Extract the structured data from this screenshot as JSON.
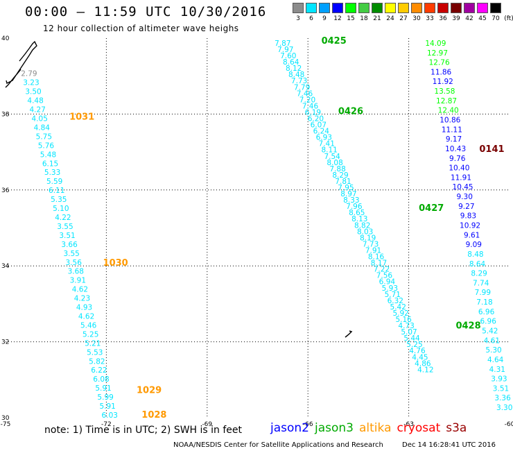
{
  "title": "00:00 – 11:59 UTC 10/30/2016",
  "subtitle": "12 hour collection of altimeter wave heighs",
  "color_scale": {
    "labels": [
      "3",
      "6",
      "9",
      "12",
      "15",
      "18",
      "21",
      "24",
      "27",
      "30",
      "33",
      "36",
      "39",
      "42",
      "45",
      "70",
      "(ft)"
    ],
    "colors": [
      "#8c8c8c",
      "#00e5ff",
      "#00a0ff",
      "#0000ff",
      "#00ff00",
      "#44cc44",
      "#008c00",
      "#ffff00",
      "#ffcc00",
      "#ff8c00",
      "#ff3c00",
      "#c80000",
      "#780000",
      "#a000a0",
      "#ff00ff",
      "#000000"
    ]
  },
  "note": "note: 1) Time is in UTC; 2) SWH is in feet",
  "satellites": [
    {
      "name": "jason2",
      "color": "#0000ff"
    },
    {
      "name": "jason3",
      "color": "#00aa00"
    },
    {
      "name": "altika",
      "color": "#ff9900"
    },
    {
      "name": "cryosat",
      "color": "#ff0000"
    },
    {
      "name": "s3a",
      "color": "#990000"
    }
  ],
  "credit": "NOAA/NESDIS Center for Satellite Applications and Research",
  "credit_date": "Dec 14 16:28:41 UTC 2016",
  "chart_data": {
    "type": "scatter",
    "title": "00:00 – 11:59 UTC 10/30/2016",
    "xlim": [
      -75,
      -60
    ],
    "ylim": [
      30,
      40
    ],
    "x_ticks": [
      "-75",
      "-72",
      "-69",
      "-66",
      "-63",
      "-60"
    ],
    "y_ticks": [
      "40",
      "38",
      "36",
      "34",
      "32",
      "30"
    ],
    "grid": true,
    "tracks": [
      {
        "name": "altika",
        "start": {
          "lon": -74.3,
          "lat": 39.0
        },
        "end": {
          "lon": -71.9,
          "lat": 30.0
        },
        "values": [
          "2.79",
          "3.23",
          "3.50",
          "4.48",
          "4.27",
          "4.05",
          "4.84",
          "5.75",
          "5.76",
          "5.48",
          "6.15",
          "5.33",
          "5.59",
          "6.11",
          "5.35",
          "5.10",
          "4.22",
          "3.55",
          "3.51",
          "3.66",
          "3.55",
          "3.56",
          "3.68",
          "3.91",
          "4.62",
          "4.23",
          "4.93",
          "4.62",
          "5.46",
          "5.25",
          "5.21",
          "5.53",
          "5.82",
          "6.22",
          "6.08",
          "5.91",
          "5.99",
          "5.91",
          "6.03"
        ],
        "colors": [
          "#8c8c8c",
          "#00e5ff",
          "#00e5ff",
          "#00e5ff",
          "#00e5ff",
          "#00e5ff",
          "#00e5ff",
          "#00e5ff",
          "#00e5ff",
          "#00e5ff",
          "#00e5ff",
          "#00e5ff",
          "#00e5ff",
          "#00e5ff",
          "#00e5ff",
          "#00e5ff",
          "#00e5ff",
          "#00e5ff",
          "#00e5ff",
          "#00e5ff",
          "#00e5ff",
          "#00e5ff",
          "#00e5ff",
          "#00e5ff",
          "#00e5ff",
          "#00e5ff",
          "#00e5ff",
          "#00e5ff",
          "#00e5ff",
          "#00e5ff",
          "#00e5ff",
          "#00e5ff",
          "#00e5ff",
          "#00e5ff",
          "#00e5ff",
          "#00e5ff",
          "#00e5ff",
          "#00e5ff",
          "#00e5ff"
        ],
        "time_labels": [
          {
            "text": "1031",
            "lon": -73.1,
            "lat": 37.85,
            "color": "#ff9900"
          },
          {
            "text": "1030",
            "lon": -72.1,
            "lat": 34.0,
            "color": "#ff9900"
          },
          {
            "text": "1029",
            "lon": -71.1,
            "lat": 30.65,
            "color": "#ff9900"
          },
          {
            "text": "1028",
            "lon": -70.95,
            "lat": 30.0,
            "color": "#ff9900"
          }
        ]
      },
      {
        "name": "jason3",
        "start": {
          "lon": -66.75,
          "lat": 39.8
        },
        "end": {
          "lon": -62.5,
          "lat": 31.2
        },
        "values": [
          "7.87",
          "7.97",
          "7.60",
          "8.64",
          "8.12",
          "8.48",
          "7.73",
          "7.79",
          "7.46",
          "7.20",
          "7.46",
          "6.19",
          "6.20",
          "6.07",
          "6.24",
          "6.93",
          "7.41",
          "8.11",
          "7.54",
          "8.08",
          "7.88",
          "8.29",
          "7.81",
          "7.95",
          "8.97",
          "8.33",
          "7.96",
          "8.65",
          "8.13",
          "8.82",
          "8.03",
          "8.19",
          "7.73",
          "7.91",
          "8.16",
          "8.17",
          "7.22",
          "7.56",
          "6.94",
          "5.93",
          "5.71",
          "6.32",
          "5.42",
          "5.92",
          "5.16",
          "4.73",
          "5.07",
          "5.44",
          "5.25",
          "4.76",
          "4.45",
          "4.86",
          "4.12"
        ],
        "colors": "#00e5ff",
        "time_labels": [
          {
            "text": "0425",
            "lon": -65.6,
            "lat": 39.85,
            "color": "#00aa00"
          },
          {
            "text": "0426",
            "lon": -65.1,
            "lat": 38.0,
            "color": "#00aa00"
          },
          {
            "text": "0427",
            "lon": -62.7,
            "lat": 35.45,
            "color": "#00aa00"
          },
          {
            "text": "0428",
            "lon": -61.6,
            "lat": 32.35,
            "color": "#00aa00"
          }
        ]
      },
      {
        "name": "jason2",
        "start": {
          "lon": -62.2,
          "lat": 39.8
        },
        "end": {
          "lon": -60.15,
          "lat": 30.2
        },
        "values": [
          "14.09",
          "12.97",
          "12.76",
          "11.86",
          "11.92",
          "13.58",
          "12.87",
          "12.40",
          "10.86",
          "11.11",
          "9.17",
          "10.43",
          "9.76",
          "10.40",
          "11.91",
          "10.45",
          "9.30",
          "9.27",
          "9.83",
          "10.92",
          "9.61",
          "9.09",
          "8.48",
          "8.64",
          "8.29",
          "7.74",
          "7.99",
          "7.18",
          "6.96",
          "6.96",
          "5.42",
          "4.61",
          "5.30",
          "4.64",
          "4.31",
          "3.93",
          "3.51",
          "3.36",
          "3.30"
        ],
        "colors": [
          "#00ff00",
          "#00ff00",
          "#00ff00",
          "#0000ff",
          "#0000ff",
          "#00ff00",
          "#00ff00",
          "#00ff00",
          "#0000ff",
          "#0000ff",
          "#0000ff",
          "#0000ff",
          "#0000ff",
          "#0000ff",
          "#0000ff",
          "#0000ff",
          "#0000ff",
          "#0000ff",
          "#0000ff",
          "#0000ff",
          "#0000ff",
          "#0000ff",
          "#00e5ff",
          "#00e5ff",
          "#00e5ff",
          "#00e5ff",
          "#00e5ff",
          "#00e5ff",
          "#00e5ff",
          "#00e5ff",
          "#00e5ff",
          "#00e5ff",
          "#00e5ff",
          "#00e5ff",
          "#00e5ff",
          "#00e5ff",
          "#00e5ff",
          "#00e5ff",
          "#00e5ff"
        ],
        "time_labels": [
          {
            "text": "0141",
            "lon": -60.9,
            "lat": 37.0,
            "color": "#780000"
          }
        ]
      }
    ]
  }
}
